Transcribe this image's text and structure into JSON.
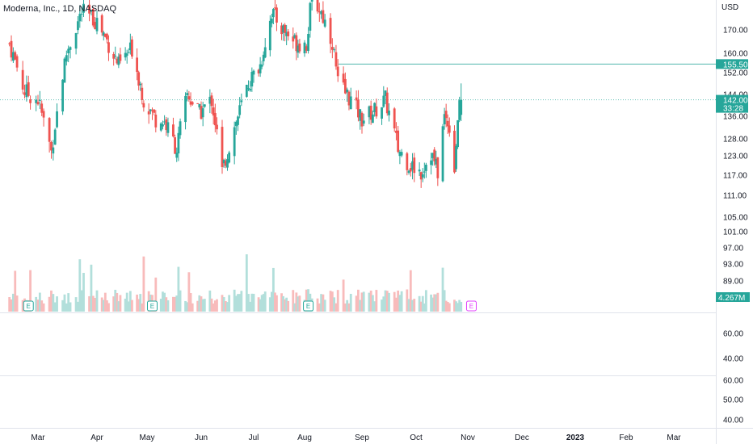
{
  "header": {
    "title": "Moderna, Inc., 1D, NASDAQ",
    "currency": "USD"
  },
  "colors": {
    "up": "#26a69a",
    "down": "#ef5350",
    "volume_up": "#b2dfdb",
    "volume_down": "#f8bbbb",
    "price_badge": "#26a69a",
    "earnings_past": "#26a69a",
    "earnings_future": "#e040fb",
    "grid": "#e0e3eb"
  },
  "price_axis": {
    "labels": [
      "170.00",
      "160.00",
      "152.00",
      "144.00",
      "136.00",
      "128.00",
      "123.00",
      "117.00",
      "111.00",
      "105.00",
      "101.00",
      "97.00",
      "93.00",
      "89.00"
    ]
  },
  "badges": {
    "line_level": "155.50",
    "last_price": "142.00",
    "countdown": "33:28",
    "volume": "4.267M"
  },
  "indicator1": {
    "labels": [
      "60.00",
      "40.00"
    ]
  },
  "indicator2": {
    "labels": [
      "60.00",
      "50.00",
      "40.00"
    ]
  },
  "time_axis": {
    "labels": [
      "Mar",
      "Apr",
      "May",
      "Jun",
      "Jul",
      "Aug",
      "Sep",
      "Oct",
      "Nov",
      "Dec",
      "2023",
      "Feb",
      "Mar"
    ],
    "bold": "2023"
  },
  "earnings": {
    "label": "E"
  },
  "chart_data": {
    "type": "candlestick",
    "title": "Moderna, Inc., 1D, NASDAQ",
    "x_range": [
      "2022-02-14",
      "2023-03-20"
    ],
    "y_log": true,
    "y_ticks": [
      170,
      160,
      152,
      144,
      136,
      128,
      123,
      117,
      111,
      105,
      101,
      97,
      93,
      89
    ],
    "levels": {
      "horizontal_line": 155.5,
      "last_price": 142.0
    },
    "last_volume": "4.267M",
    "earnings_dates": [
      "2022-02-24",
      "2022-05-04",
      "2022-08-03",
      "2022-11-03"
    ],
    "anchors": [
      [
        "2022-02-14",
        164
      ],
      [
        "2022-02-22",
        145
      ],
      [
        "2022-03-01",
        142
      ],
      [
        "2022-03-08",
        124
      ],
      [
        "2022-03-16",
        160
      ],
      [
        "2022-03-24",
        178
      ],
      [
        "2022-04-01",
        174
      ],
      [
        "2022-04-08",
        164
      ],
      [
        "2022-04-14",
        155
      ],
      [
        "2022-04-22",
        162
      ],
      [
        "2022-04-29",
        142
      ],
      [
        "2022-05-06",
        135
      ],
      [
        "2022-05-11",
        134
      ],
      [
        "2022-05-18",
        125
      ],
      [
        "2022-05-24",
        144
      ],
      [
        "2022-05-31",
        137
      ],
      [
        "2022-06-07",
        142
      ],
      [
        "2022-06-13",
        118
      ],
      [
        "2022-06-21",
        134
      ],
      [
        "2022-06-28",
        148
      ],
      [
        "2022-07-05",
        155
      ],
      [
        "2022-07-12",
        178
      ],
      [
        "2022-07-19",
        170
      ],
      [
        "2022-07-26",
        165
      ],
      [
        "2022-08-02",
        164
      ],
      [
        "2022-08-05",
        185
      ],
      [
        "2022-08-10",
        178
      ],
      [
        "2022-08-16",
        165
      ],
      [
        "2022-08-19",
        148
      ],
      [
        "2022-08-25",
        143
      ],
      [
        "2022-09-01",
        135
      ],
      [
        "2022-09-08",
        138
      ],
      [
        "2022-09-14",
        142
      ],
      [
        "2022-09-21",
        125
      ],
      [
        "2022-09-28",
        120
      ],
      [
        "2022-10-04",
        118
      ],
      [
        "2022-10-10",
        124
      ],
      [
        "2022-10-14",
        118
      ],
      [
        "2022-10-18",
        136
      ],
      [
        "2022-10-21",
        133
      ],
      [
        "2022-10-24",
        119
      ],
      [
        "2022-10-26",
        135
      ],
      [
        "2022-10-28",
        142
      ]
    ],
    "volume_range_shares": [
      0,
      25000000
    ]
  }
}
